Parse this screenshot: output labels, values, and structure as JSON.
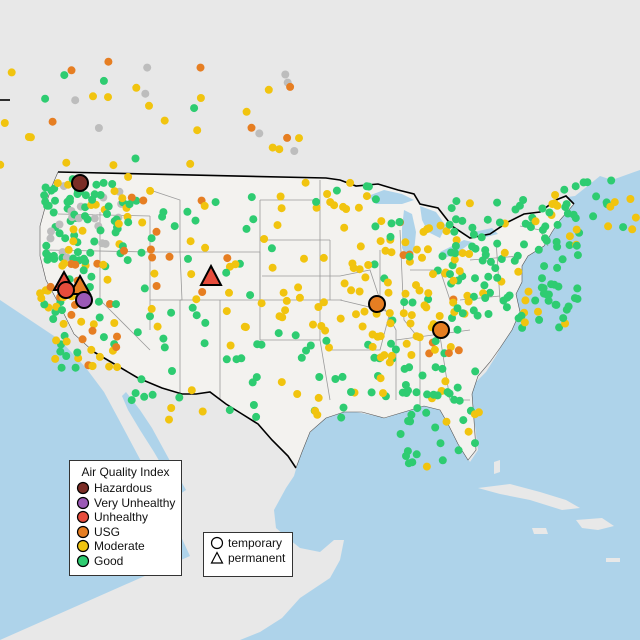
{
  "colors": {
    "water": "#aed3ea",
    "land": "#e8e8e8",
    "land_us": "#f3f2ef",
    "state_line": "#9a9a9a",
    "border": "#000000",
    "hazardous": "#7b2d26",
    "very_unhealthy": "#9b59b6",
    "unhealthy": "#e74c3c",
    "usg": "#e67e22",
    "moderate": "#f1c40f",
    "good": "#2ecc71",
    "no_data": "#bdbdbd"
  },
  "legend": {
    "title": "Air Quality Index",
    "items": [
      {
        "label": "Hazardous",
        "category": "hazardous"
      },
      {
        "label": "Very Unhealthy",
        "category": "very_unhealthy"
      },
      {
        "label": "Unhealthy",
        "category": "unhealthy"
      },
      {
        "label": "USG",
        "category": "usg"
      },
      {
        "label": "Moderate",
        "category": "moderate"
      },
      {
        "label": "Good",
        "category": "good"
      }
    ]
  },
  "monitor_legend": {
    "items": [
      {
        "label": "temporary",
        "shape": "circle"
      },
      {
        "label": "permanent",
        "shape": "triangle"
      }
    ]
  },
  "large_monitors": [
    {
      "name": "northern-idaho",
      "category": "hazardous",
      "shape": "circle"
    },
    {
      "name": "northern-california-1",
      "category": "unhealthy",
      "shape": "triangle"
    },
    {
      "name": "northern-california-2",
      "category": "usg",
      "shape": "triangle"
    },
    {
      "name": "northern-california-3",
      "category": "unhealthy",
      "shape": "circle"
    },
    {
      "name": "nevada-border",
      "category": "very_unhealthy",
      "shape": "circle"
    },
    {
      "name": "colorado",
      "category": "unhealthy",
      "shape": "triangle"
    },
    {
      "name": "illinois",
      "category": "usg",
      "shape": "circle"
    },
    {
      "name": "tennessee",
      "category": "usg",
      "shape": "circle"
    }
  ]
}
